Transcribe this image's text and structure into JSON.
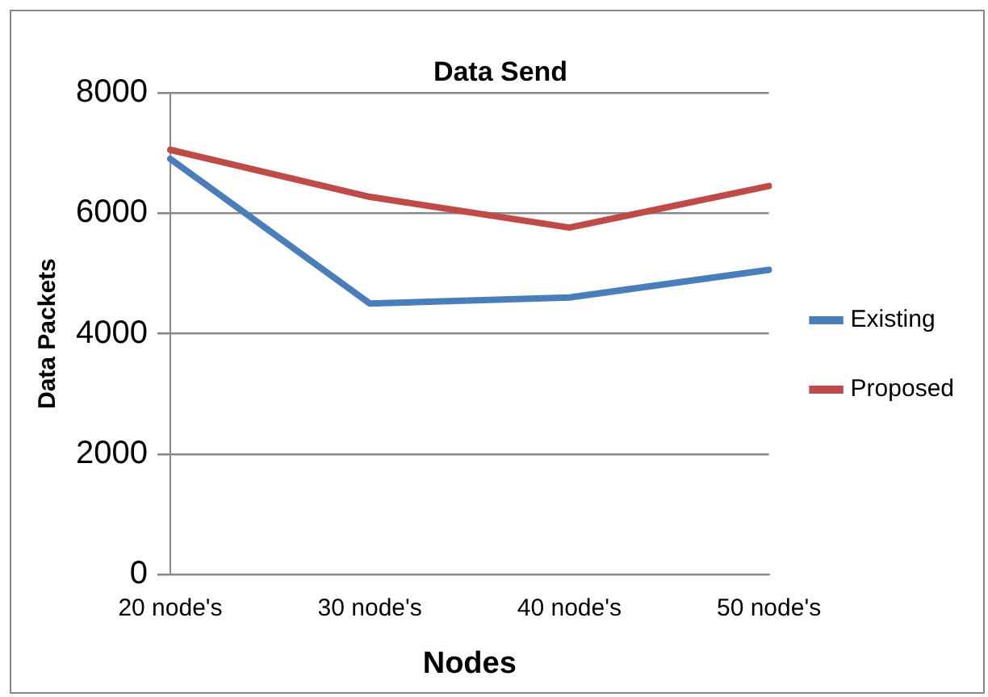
{
  "chart_data": {
    "type": "line",
    "title": "Data Send",
    "xlabel": "Nodes",
    "ylabel": "Data Packets",
    "categories": [
      "20 node's",
      "30 node's",
      "40 node's",
      "50 node's"
    ],
    "series": [
      {
        "name": "Existing",
        "color": "#4a7ebb",
        "values": [
          6900,
          4500,
          4600,
          5060
        ]
      },
      {
        "name": "Proposed",
        "color": "#be4b48",
        "values": [
          7050,
          6270,
          5760,
          6450
        ]
      }
    ],
    "ylim": [
      0,
      8000
    ],
    "yticks": [
      0,
      2000,
      4000,
      6000,
      8000
    ],
    "grid": "y",
    "legend": "right",
    "marker": "none"
  }
}
